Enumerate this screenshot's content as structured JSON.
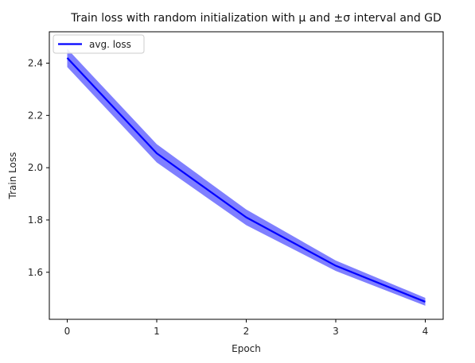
{
  "chart_data": {
    "type": "line",
    "title": "Train loss with random initialization with μ and ±σ interval and GD",
    "xlabel": "Epoch",
    "ylabel": "Train Loss",
    "x": [
      0,
      1,
      2,
      3,
      4
    ],
    "xticks": [
      "0",
      "1",
      "2",
      "3",
      "4"
    ],
    "yticks": [
      "1.6",
      "1.8",
      "2.0",
      "2.2",
      "2.4"
    ],
    "xlim": [
      -0.2,
      4.2
    ],
    "ylim": [
      1.42,
      2.52
    ],
    "grid": false,
    "legend_position": "top-left",
    "series": [
      {
        "name": "avg. loss",
        "color": "#0000ff",
        "band_color": "#7f7fff",
        "values": [
          2.42,
          2.055,
          1.81,
          1.625,
          1.487
        ],
        "lower": [
          2.385,
          2.02,
          1.78,
          1.605,
          1.472
        ],
        "upper": [
          2.455,
          2.09,
          1.84,
          1.645,
          1.502
        ]
      }
    ]
  }
}
